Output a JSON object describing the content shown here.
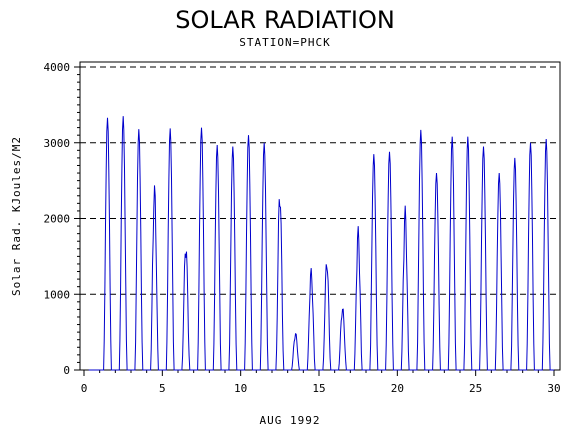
{
  "chart_data": {
    "type": "line",
    "title": "SOLAR RADIATION",
    "subtitle": "STATION=PHCK",
    "xlabel": "AUG 1992",
    "ylabel": "Solar Rad. KJoules/M2",
    "xlim": [
      0,
      30
    ],
    "ylim": [
      0,
      4000
    ],
    "x_ticks": [
      0,
      5,
      10,
      15,
      20,
      25,
      30
    ],
    "y_ticks": [
      0,
      1000,
      2000,
      3000,
      4000
    ],
    "gridlines_y": [
      1000,
      2000,
      3000,
      4000
    ],
    "series": [
      {
        "color": "#0000cc",
        "daily_peaks": [
          {
            "day": 1.5,
            "peak": 3330
          },
          {
            "day": 2.5,
            "peak": 3350
          },
          {
            "day": 3.5,
            "peak": 3180
          },
          {
            "day": 4.5,
            "peak": 2460
          },
          {
            "day": 5.5,
            "peak": 3190
          },
          {
            "day": 6.5,
            "peak": 1720
          },
          {
            "day": 7.5,
            "peak": 3200
          },
          {
            "day": 8.5,
            "peak": 2970
          },
          {
            "day": 9.5,
            "peak": 2950
          },
          {
            "day": 10.5,
            "peak": 3100
          },
          {
            "day": 11.5,
            "peak": 3000
          },
          {
            "day": 12.5,
            "peak": 2450
          },
          {
            "day": 13.5,
            "peak": 500
          },
          {
            "day": 14.5,
            "peak": 1350
          },
          {
            "day": 15.5,
            "peak": 1500
          },
          {
            "day": 16.5,
            "peak": 850
          },
          {
            "day": 17.5,
            "peak": 1900
          },
          {
            "day": 18.5,
            "peak": 2850
          },
          {
            "day": 19.5,
            "peak": 2880
          },
          {
            "day": 20.5,
            "peak": 2170
          },
          {
            "day": 21.5,
            "peak": 3170
          },
          {
            "day": 22.5,
            "peak": 2600
          },
          {
            "day": 23.5,
            "peak": 3080
          },
          {
            "day": 24.5,
            "peak": 3080
          },
          {
            "day": 25.5,
            "peak": 2950
          },
          {
            "day": 26.5,
            "peak": 2600
          },
          {
            "day": 27.5,
            "peak": 2800
          },
          {
            "day": 28.5,
            "peak": 3000
          },
          {
            "day": 29.5,
            "peak": 3050
          }
        ]
      }
    ]
  }
}
